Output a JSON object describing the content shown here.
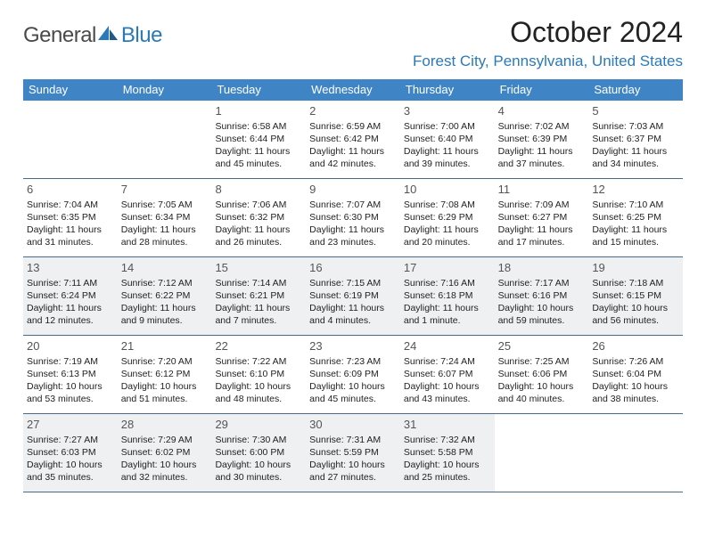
{
  "brand": {
    "part1": "General",
    "part2": "Blue"
  },
  "title": "October 2024",
  "location": "Forest City, Pennsylvania, United States",
  "colors": {
    "header_bg": "#3f85c6",
    "brand_blue": "#2a7ab8",
    "row_border": "#4a6a8a",
    "shaded_bg": "#eef0f2",
    "page_bg": "#ffffff",
    "text": "#222222"
  },
  "weekdays": [
    "Sunday",
    "Monday",
    "Tuesday",
    "Wednesday",
    "Thursday",
    "Friday",
    "Saturday"
  ],
  "weeks": [
    [
      {
        "n": "",
        "lines": []
      },
      {
        "n": "",
        "lines": []
      },
      {
        "n": "1",
        "lines": [
          "Sunrise: 6:58 AM",
          "Sunset: 6:44 PM",
          "Daylight: 11 hours",
          "and 45 minutes."
        ]
      },
      {
        "n": "2",
        "lines": [
          "Sunrise: 6:59 AM",
          "Sunset: 6:42 PM",
          "Daylight: 11 hours",
          "and 42 minutes."
        ]
      },
      {
        "n": "3",
        "lines": [
          "Sunrise: 7:00 AM",
          "Sunset: 6:40 PM",
          "Daylight: 11 hours",
          "and 39 minutes."
        ]
      },
      {
        "n": "4",
        "lines": [
          "Sunrise: 7:02 AM",
          "Sunset: 6:39 PM",
          "Daylight: 11 hours",
          "and 37 minutes."
        ]
      },
      {
        "n": "5",
        "lines": [
          "Sunrise: 7:03 AM",
          "Sunset: 6:37 PM",
          "Daylight: 11 hours",
          "and 34 minutes."
        ]
      }
    ],
    [
      {
        "n": "6",
        "lines": [
          "Sunrise: 7:04 AM",
          "Sunset: 6:35 PM",
          "Daylight: 11 hours",
          "and 31 minutes."
        ]
      },
      {
        "n": "7",
        "lines": [
          "Sunrise: 7:05 AM",
          "Sunset: 6:34 PM",
          "Daylight: 11 hours",
          "and 28 minutes."
        ]
      },
      {
        "n": "8",
        "lines": [
          "Sunrise: 7:06 AM",
          "Sunset: 6:32 PM",
          "Daylight: 11 hours",
          "and 26 minutes."
        ]
      },
      {
        "n": "9",
        "lines": [
          "Sunrise: 7:07 AM",
          "Sunset: 6:30 PM",
          "Daylight: 11 hours",
          "and 23 minutes."
        ]
      },
      {
        "n": "10",
        "lines": [
          "Sunrise: 7:08 AM",
          "Sunset: 6:29 PM",
          "Daylight: 11 hours",
          "and 20 minutes."
        ]
      },
      {
        "n": "11",
        "lines": [
          "Sunrise: 7:09 AM",
          "Sunset: 6:27 PM",
          "Daylight: 11 hours",
          "and 17 minutes."
        ]
      },
      {
        "n": "12",
        "lines": [
          "Sunrise: 7:10 AM",
          "Sunset: 6:25 PM",
          "Daylight: 11 hours",
          "and 15 minutes."
        ]
      }
    ],
    [
      {
        "n": "13",
        "lines": [
          "Sunrise: 7:11 AM",
          "Sunset: 6:24 PM",
          "Daylight: 11 hours",
          "and 12 minutes."
        ]
      },
      {
        "n": "14",
        "lines": [
          "Sunrise: 7:12 AM",
          "Sunset: 6:22 PM",
          "Daylight: 11 hours",
          "and 9 minutes."
        ]
      },
      {
        "n": "15",
        "lines": [
          "Sunrise: 7:14 AM",
          "Sunset: 6:21 PM",
          "Daylight: 11 hours",
          "and 7 minutes."
        ]
      },
      {
        "n": "16",
        "lines": [
          "Sunrise: 7:15 AM",
          "Sunset: 6:19 PM",
          "Daylight: 11 hours",
          "and 4 minutes."
        ]
      },
      {
        "n": "17",
        "lines": [
          "Sunrise: 7:16 AM",
          "Sunset: 6:18 PM",
          "Daylight: 11 hours",
          "and 1 minute."
        ]
      },
      {
        "n": "18",
        "lines": [
          "Sunrise: 7:17 AM",
          "Sunset: 6:16 PM",
          "Daylight: 10 hours",
          "and 59 minutes."
        ]
      },
      {
        "n": "19",
        "lines": [
          "Sunrise: 7:18 AM",
          "Sunset: 6:15 PM",
          "Daylight: 10 hours",
          "and 56 minutes."
        ]
      }
    ],
    [
      {
        "n": "20",
        "lines": [
          "Sunrise: 7:19 AM",
          "Sunset: 6:13 PM",
          "Daylight: 10 hours",
          "and 53 minutes."
        ]
      },
      {
        "n": "21",
        "lines": [
          "Sunrise: 7:20 AM",
          "Sunset: 6:12 PM",
          "Daylight: 10 hours",
          "and 51 minutes."
        ]
      },
      {
        "n": "22",
        "lines": [
          "Sunrise: 7:22 AM",
          "Sunset: 6:10 PM",
          "Daylight: 10 hours",
          "and 48 minutes."
        ]
      },
      {
        "n": "23",
        "lines": [
          "Sunrise: 7:23 AM",
          "Sunset: 6:09 PM",
          "Daylight: 10 hours",
          "and 45 minutes."
        ]
      },
      {
        "n": "24",
        "lines": [
          "Sunrise: 7:24 AM",
          "Sunset: 6:07 PM",
          "Daylight: 10 hours",
          "and 43 minutes."
        ]
      },
      {
        "n": "25",
        "lines": [
          "Sunrise: 7:25 AM",
          "Sunset: 6:06 PM",
          "Daylight: 10 hours",
          "and 40 minutes."
        ]
      },
      {
        "n": "26",
        "lines": [
          "Sunrise: 7:26 AM",
          "Sunset: 6:04 PM",
          "Daylight: 10 hours",
          "and 38 minutes."
        ]
      }
    ],
    [
      {
        "n": "27",
        "lines": [
          "Sunrise: 7:27 AM",
          "Sunset: 6:03 PM",
          "Daylight: 10 hours",
          "and 35 minutes."
        ]
      },
      {
        "n": "28",
        "lines": [
          "Sunrise: 7:29 AM",
          "Sunset: 6:02 PM",
          "Daylight: 10 hours",
          "and 32 minutes."
        ]
      },
      {
        "n": "29",
        "lines": [
          "Sunrise: 7:30 AM",
          "Sunset: 6:00 PM",
          "Daylight: 10 hours",
          "and 30 minutes."
        ]
      },
      {
        "n": "30",
        "lines": [
          "Sunrise: 7:31 AM",
          "Sunset: 5:59 PM",
          "Daylight: 10 hours",
          "and 27 minutes."
        ]
      },
      {
        "n": "31",
        "lines": [
          "Sunrise: 7:32 AM",
          "Sunset: 5:58 PM",
          "Daylight: 10 hours",
          "and 25 minutes."
        ]
      },
      {
        "n": "",
        "lines": []
      },
      {
        "n": "",
        "lines": []
      }
    ]
  ],
  "shaded_weeks": [
    2,
    4
  ]
}
